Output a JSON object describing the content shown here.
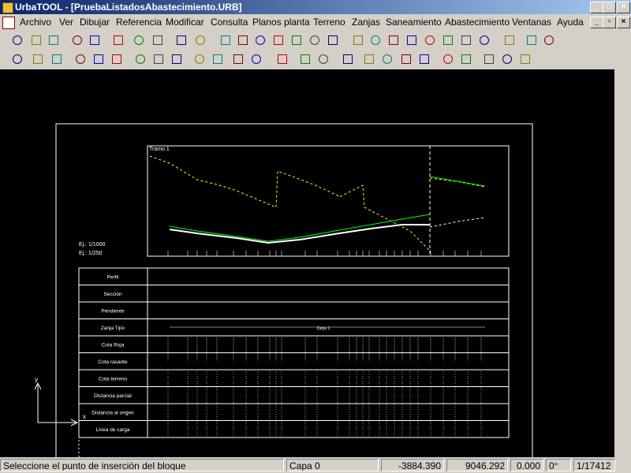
{
  "window": {
    "title": "UrbaTOOL - [PruebaListadosAbastecimiento.URB]"
  },
  "menu": [
    "Archivo",
    "Ver",
    "Dibujar",
    "Referencia",
    "Modificar",
    "Consulta",
    "Planos planta",
    "Terreno",
    "Zanjas",
    "Saneamiento",
    "Abastecimiento",
    "Ventanas",
    "Ayuda"
  ],
  "drawing": {
    "profile_title": "Tramo 1",
    "scale_h": "Ej.: 1/1000",
    "scale_v": "Ej.: 1/250",
    "table_rows": [
      "Perfil",
      "Sección",
      "Pendiente",
      "Zanja Tipo",
      "Cota Roja",
      "Cota rasante",
      "Cota terreno",
      "Distancia parcial",
      "Distancia al origen",
      "Linea de carga"
    ],
    "trench_label": "Zanja 1",
    "axis_x": "x",
    "axis_y": "y"
  },
  "status": {
    "message": "Seleccione el punto de inserción del bloque",
    "layer": "Capa 0",
    "x": "-3884.390",
    "y": "9046.292",
    "z": "0.000",
    "angle": "0°",
    "scale": "1/17412"
  }
}
